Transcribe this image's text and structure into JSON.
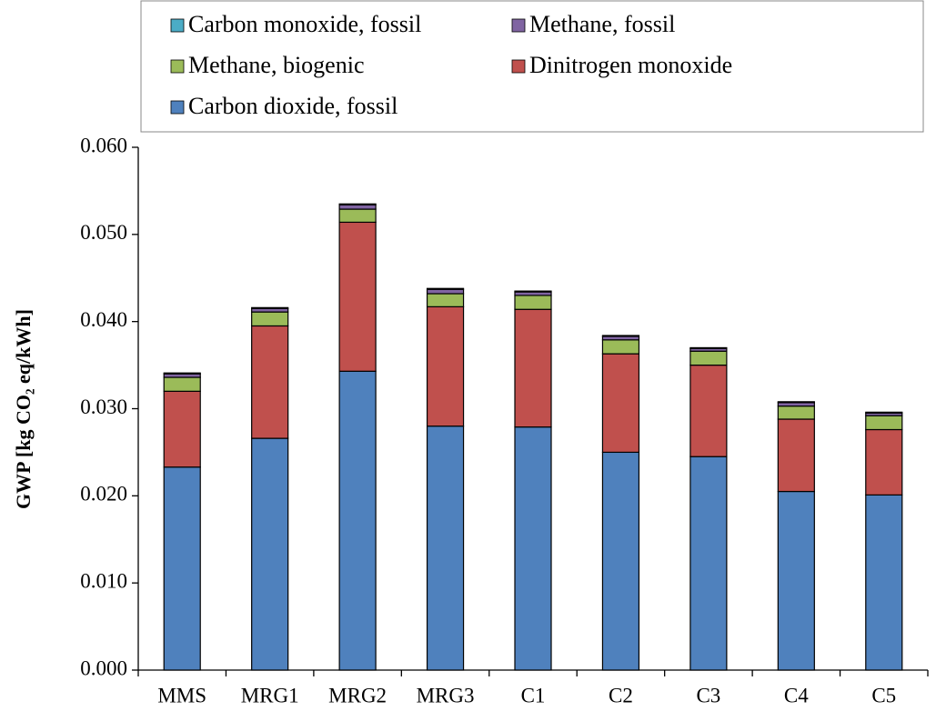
{
  "chart_data": {
    "type": "stacked_bar",
    "y_label": "GWP [kg CO₂ eq/kWh]",
    "categories": [
      "MMS",
      "MRG1",
      "MRG2",
      "MRG3",
      "C1",
      "C2",
      "C3",
      "C4",
      "C5"
    ],
    "series": [
      {
        "name": "Carbon dioxide, fossil",
        "color": "#4f81bd",
        "values": [
          0.0233,
          0.0266,
          0.0343,
          0.028,
          0.0279,
          0.025,
          0.0245,
          0.0205,
          0.0201
        ]
      },
      {
        "name": "Dinitrogen monoxide",
        "color": "#c0504d",
        "values": [
          0.0087,
          0.0129,
          0.0171,
          0.0137,
          0.0135,
          0.0113,
          0.0105,
          0.0083,
          0.0075
        ]
      },
      {
        "name": "Methane, biogenic",
        "color": "#9bbb59",
        "values": [
          0.0016,
          0.0016,
          0.0015,
          0.0015,
          0.0016,
          0.0016,
          0.0016,
          0.0015,
          0.0016
        ]
      },
      {
        "name": "Methane, fossil",
        "color": "#8064a2",
        "values": [
          0.0004,
          0.0004,
          0.0005,
          0.0005,
          0.0004,
          0.0004,
          0.0003,
          0.0004,
          0.0003
        ]
      },
      {
        "name": "Carbon monoxide, fossil",
        "color": "#4bacc6",
        "values": [
          0.0001,
          0.0001,
          0.0001,
          0.0001,
          0.0001,
          0.0001,
          0.0001,
          0.0001,
          0.0001
        ]
      }
    ],
    "ylim": [
      0,
      0.06
    ],
    "yticks": [
      {
        "value": 0,
        "label": "0.000"
      },
      {
        "value": 0.01,
        "label": "0.010"
      },
      {
        "value": 0.02,
        "label": "0.020"
      },
      {
        "value": 0.03,
        "label": "0.030"
      },
      {
        "value": 0.04,
        "label": "0.040"
      },
      {
        "value": 0.05,
        "label": "0.050"
      },
      {
        "value": 0.06,
        "label": "0.060"
      }
    ],
    "grid": false,
    "legend": "top"
  }
}
